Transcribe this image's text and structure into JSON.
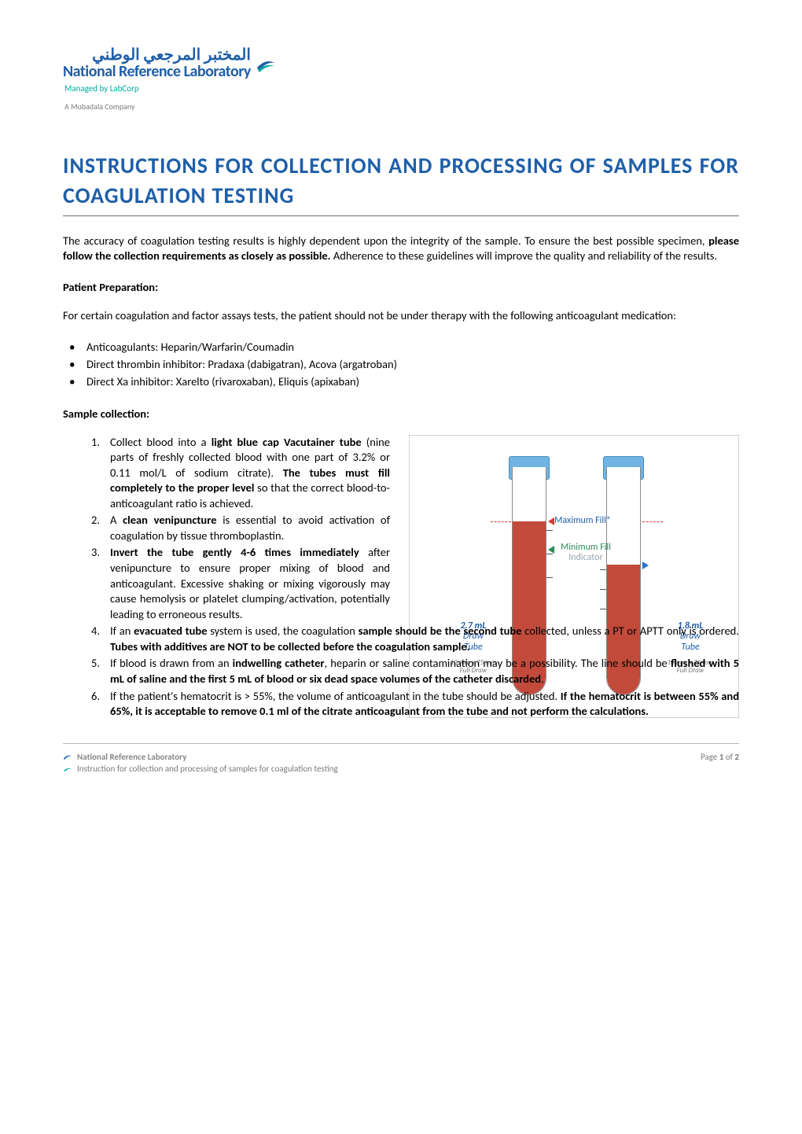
{
  "header": {
    "logo_arabic": "المختبر المرجعي الوطني",
    "logo_english": "National Reference Laboratory",
    "managed_by": "Managed by LabCorp",
    "company": "A Mubadala Company"
  },
  "title": "INSTRUCTIONS FOR COLLECTION AND PROCESSING OF SAMPLES FOR COAGULATION TESTING",
  "intro_parts": {
    "p1": "The accuracy of coagulation testing results is highly dependent upon the integrity of the sample. To ensure the best possible specimen, ",
    "b1": "please follow the collection requirements as closely as possible.",
    "p2": " Adherence to these guidelines will improve the quality and reliability of the results."
  },
  "patient_prep": {
    "heading": "Patient Preparation:",
    "intro": "For certain coagulation and factor assays tests, the patient should not be under therapy with the following anticoagulant medication:",
    "bullets": [
      "Anticoagulants: Heparin/Warfarin/Coumadin",
      "Direct thrombin inhibitor: Pradaxa (dabigatran), Acova (argatroban)",
      "Direct Xa inhibitor: Xarelto (rivaroxaban), Eliquis (apixaban)"
    ]
  },
  "sample_collection": {
    "heading": "Sample collection:",
    "items": [
      {
        "narrow": true,
        "segments": [
          {
            "t": "Collect blood into a "
          },
          {
            "b": "light blue cap Vacutainer tube"
          },
          {
            "t": " (nine parts of freshly collected blood with one part of 3.2% or 0.11 mol/L of sodium citrate). "
          },
          {
            "b": "The tubes must fill completely to the proper level"
          },
          {
            "t": " so that the correct blood-to-anticoagulant ratio is achieved."
          }
        ]
      },
      {
        "narrow": true,
        "segments": [
          {
            "t": "A "
          },
          {
            "b": "clean venipuncture"
          },
          {
            "t": " is essential to avoid activation of coagulation by tissue thromboplastin."
          }
        ]
      },
      {
        "narrow": true,
        "segments": [
          {
            "b": "Invert the tube gently 4-6 times immediately"
          },
          {
            "t": " after venipuncture to ensure proper mixing of blood and anticoagulant. Excessive shaking or mixing vigorously may cause hemolysis or platelet clumping/activation, potentially leading to erroneous results."
          }
        ]
      },
      {
        "narrow": false,
        "segments": [
          {
            "t": "If an "
          },
          {
            "b": "evacuated tube"
          },
          {
            "t": " system is used, the coagulation "
          },
          {
            "b": "sample should be the second tube"
          },
          {
            "t": " collected, unless a PT or APTT only is ordered. "
          },
          {
            "b": "Tubes with additives are NOT to be collected before the coagulation sample."
          }
        ]
      },
      {
        "narrow": false,
        "segments": [
          {
            "t": "If blood is drawn from an "
          },
          {
            "b": "indwelling catheter"
          },
          {
            "t": ", heparin or saline contamination may be a possibility. The line should be "
          },
          {
            "b": "flushed with 5 mL of saline and the first 5 mL of blood or six dead space volumes of the catheter discarded"
          },
          {
            "t": "."
          }
        ]
      },
      {
        "narrow": false,
        "segments": [
          {
            "t": "If the patient's hematocrit is > 55%, the volume of anticoagulant in the tube should be adjusted. "
          },
          {
            "b": "If the hematocrit is between 55% and 65%, it is acceptable to remove 0.1 ml of the citrate anticoagulant from the tube and not perform the calculations."
          }
        ]
      }
    ]
  },
  "figure": {
    "colors": {
      "border": "#d0d0d0",
      "cap": "#6fb4e3",
      "cap_border": "#4a8cb8",
      "blood": "#c24a3b",
      "tube_border": "#888888",
      "max_fill_text": "#1f5fa8",
      "min_fill_text": "#2f8a5b",
      "min_fill_sub": "#9aa8b2",
      "dash": "#d43b2f",
      "arrow_blue": "#2b74c7"
    },
    "left_tube": {
      "draw_label": "2.7 mL",
      "draw_sub1": "Draw",
      "draw_sub2": "Tube",
      "spec1": "13 mm x 75 mm",
      "spec2": "Full Draw"
    },
    "right_tube": {
      "draw_label": "1.8 mL",
      "draw_sub1": "Draw",
      "draw_sub2": "Tube",
      "spec1": "13 mm x 75 mm",
      "spec2": "Full Draw"
    },
    "labels": {
      "max_fill": "Maximum Fill*",
      "min_fill": "Minimum Fill",
      "indicator": "Indicator"
    }
  },
  "footer": {
    "title": "National Reference Laboratory",
    "subtitle": "Instruction for collection and processing of samples for coagulation testing",
    "page_prefix": "Page ",
    "page_num": "1",
    "page_of": " of ",
    "page_total": "2"
  }
}
